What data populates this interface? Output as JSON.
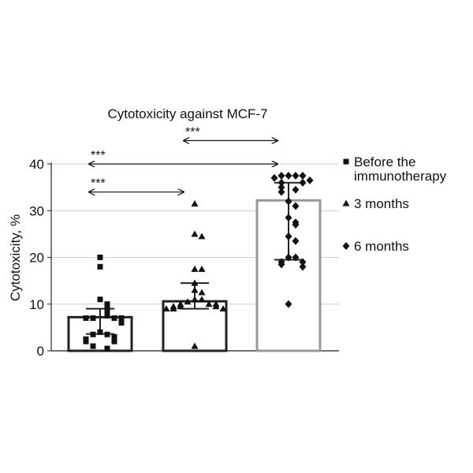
{
  "chart_data": {
    "type": "bar",
    "title": "Cytotoxicity against MCF-7",
    "ylabel": "Cytotoxicity, %",
    "xlabel": "",
    "ylim": [
      0,
      40
    ],
    "yticks": [
      0,
      10,
      20,
      30,
      40
    ],
    "grid": true,
    "legend_position": "right",
    "categories": [
      "Before the immunotherapy",
      "3 months",
      "6 months"
    ],
    "series": [
      {
        "name": "Before the immunotherapy",
        "marker": "square",
        "bar_color": "#222222",
        "mean": 7.2,
        "error": [
          3.6,
          9.0
        ],
        "points": [
          20.0,
          18.0,
          11.0,
          10.0,
          9.0,
          8.0,
          7.5,
          7.0,
          7.0,
          7.0,
          7.0,
          6.5,
          6.0,
          4.0,
          3.5,
          3.5,
          3.0,
          2.5,
          2.5,
          2.0,
          2.0,
          1.0,
          0.5
        ]
      },
      {
        "name": "3 months",
        "marker": "triangle",
        "bar_color": "#222222",
        "mean": 10.6,
        "error": [
          9.0,
          14.5
        ],
        "points": [
          31.5,
          25.0,
          24.5,
          17.5,
          17.5,
          14.5,
          13.0,
          12.5,
          11.0,
          11.0,
          10.5,
          10.0,
          10.0,
          10.0,
          9.5,
          9.5,
          9.5,
          9.0,
          9.0,
          9.0,
          1.0
        ]
      },
      {
        "name": "6 months",
        "marker": "diamond",
        "bar_color": "#999999",
        "mean": 32.2,
        "error": [
          19.5,
          36.0
        ],
        "points": [
          37.5,
          37.5,
          37.5,
          37.5,
          37.0,
          36.5,
          36.0,
          36.0,
          35.0,
          34.5,
          34.0,
          32.0,
          31.0,
          28.5,
          27.5,
          27.0,
          24.5,
          23.5,
          20.0,
          20.0,
          19.0,
          19.0,
          18.5,
          18.0,
          10.0
        ]
      }
    ],
    "significance": [
      {
        "from": 0,
        "to": 2,
        "label": "***",
        "y": 40.0
      },
      {
        "from": 0,
        "to": 1,
        "label": "***",
        "y": 34.0
      },
      {
        "from": 1,
        "to": 2,
        "label": "***",
        "y": 45.0
      }
    ],
    "legend": [
      {
        "lines": [
          "Before the",
          "immunotherapy"
        ],
        "marker": "square"
      },
      {
        "lines": [
          "3 months"
        ],
        "marker": "triangle"
      },
      {
        "lines": [
          "6 months"
        ],
        "marker": "diamond"
      }
    ]
  }
}
